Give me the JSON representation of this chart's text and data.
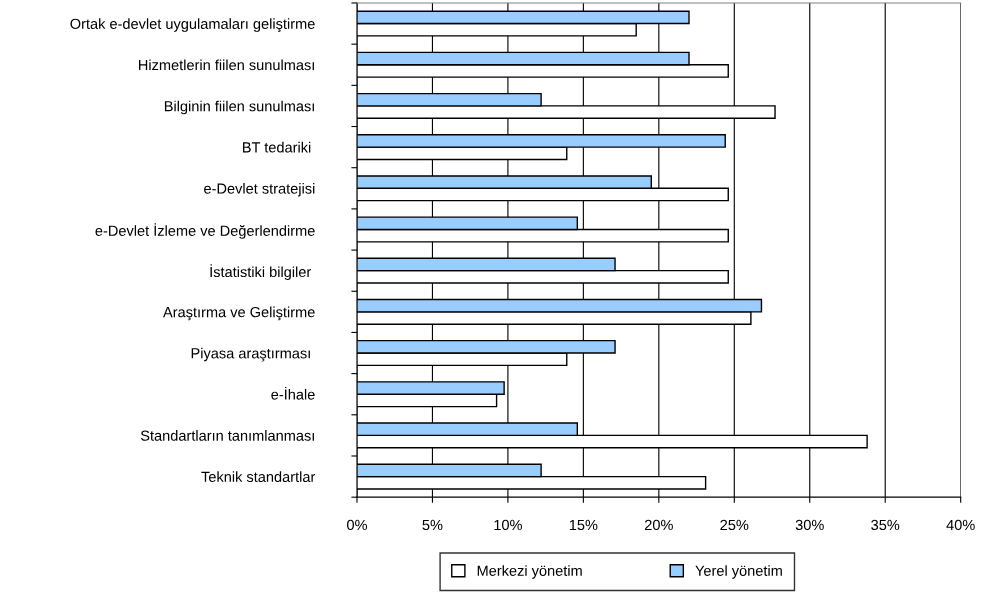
{
  "chart_data": {
    "type": "bar",
    "orientation": "horizontal",
    "categories": [
      "Ortak e-devlet uygulamaları geliştirme",
      "Hizmetlerin fiilen sunulması",
      "Bilginin fiilen sunulması",
      "BT tedariki ",
      "e-Devlet stratejisi",
      "e-Devlet İzleme ve Değerlendirme",
      "İstatistiki bilgiler ",
      "Araştırma ve Geliştirme",
      "Piyasa araştırması ",
      "e-İhale",
      "Standartların tanımlanması",
      "Teknik standartlar"
    ],
    "series": [
      {
        "name": "Merkezi yönetim",
        "color": "#ffffff",
        "values": [
          18.5,
          24.6,
          27.7,
          13.9,
          24.6,
          24.6,
          24.6,
          26.1,
          13.9,
          9.25,
          33.8,
          23.1
        ]
      },
      {
        "name": "Yerel yönetim",
        "color": "#99ccff",
        "values": [
          22.0,
          22.0,
          12.2,
          24.4,
          19.5,
          14.6,
          17.1,
          26.8,
          17.1,
          9.75,
          14.6,
          12.2
        ]
      }
    ],
    "xlim": [
      0,
      40
    ],
    "xticks": [
      {
        "value": 0,
        "label": "0%"
      },
      {
        "value": 5,
        "label": "5%"
      },
      {
        "value": 10,
        "label": "10%"
      },
      {
        "value": 15,
        "label": "15%"
      },
      {
        "value": 20,
        "label": "20%"
      },
      {
        "value": 25,
        "label": "25%"
      },
      {
        "value": 30,
        "label": "30%"
      },
      {
        "value": 35,
        "label": "35%"
      },
      {
        "value": 40,
        "label": "40%"
      }
    ],
    "grid": "x",
    "legend": "bottom"
  }
}
